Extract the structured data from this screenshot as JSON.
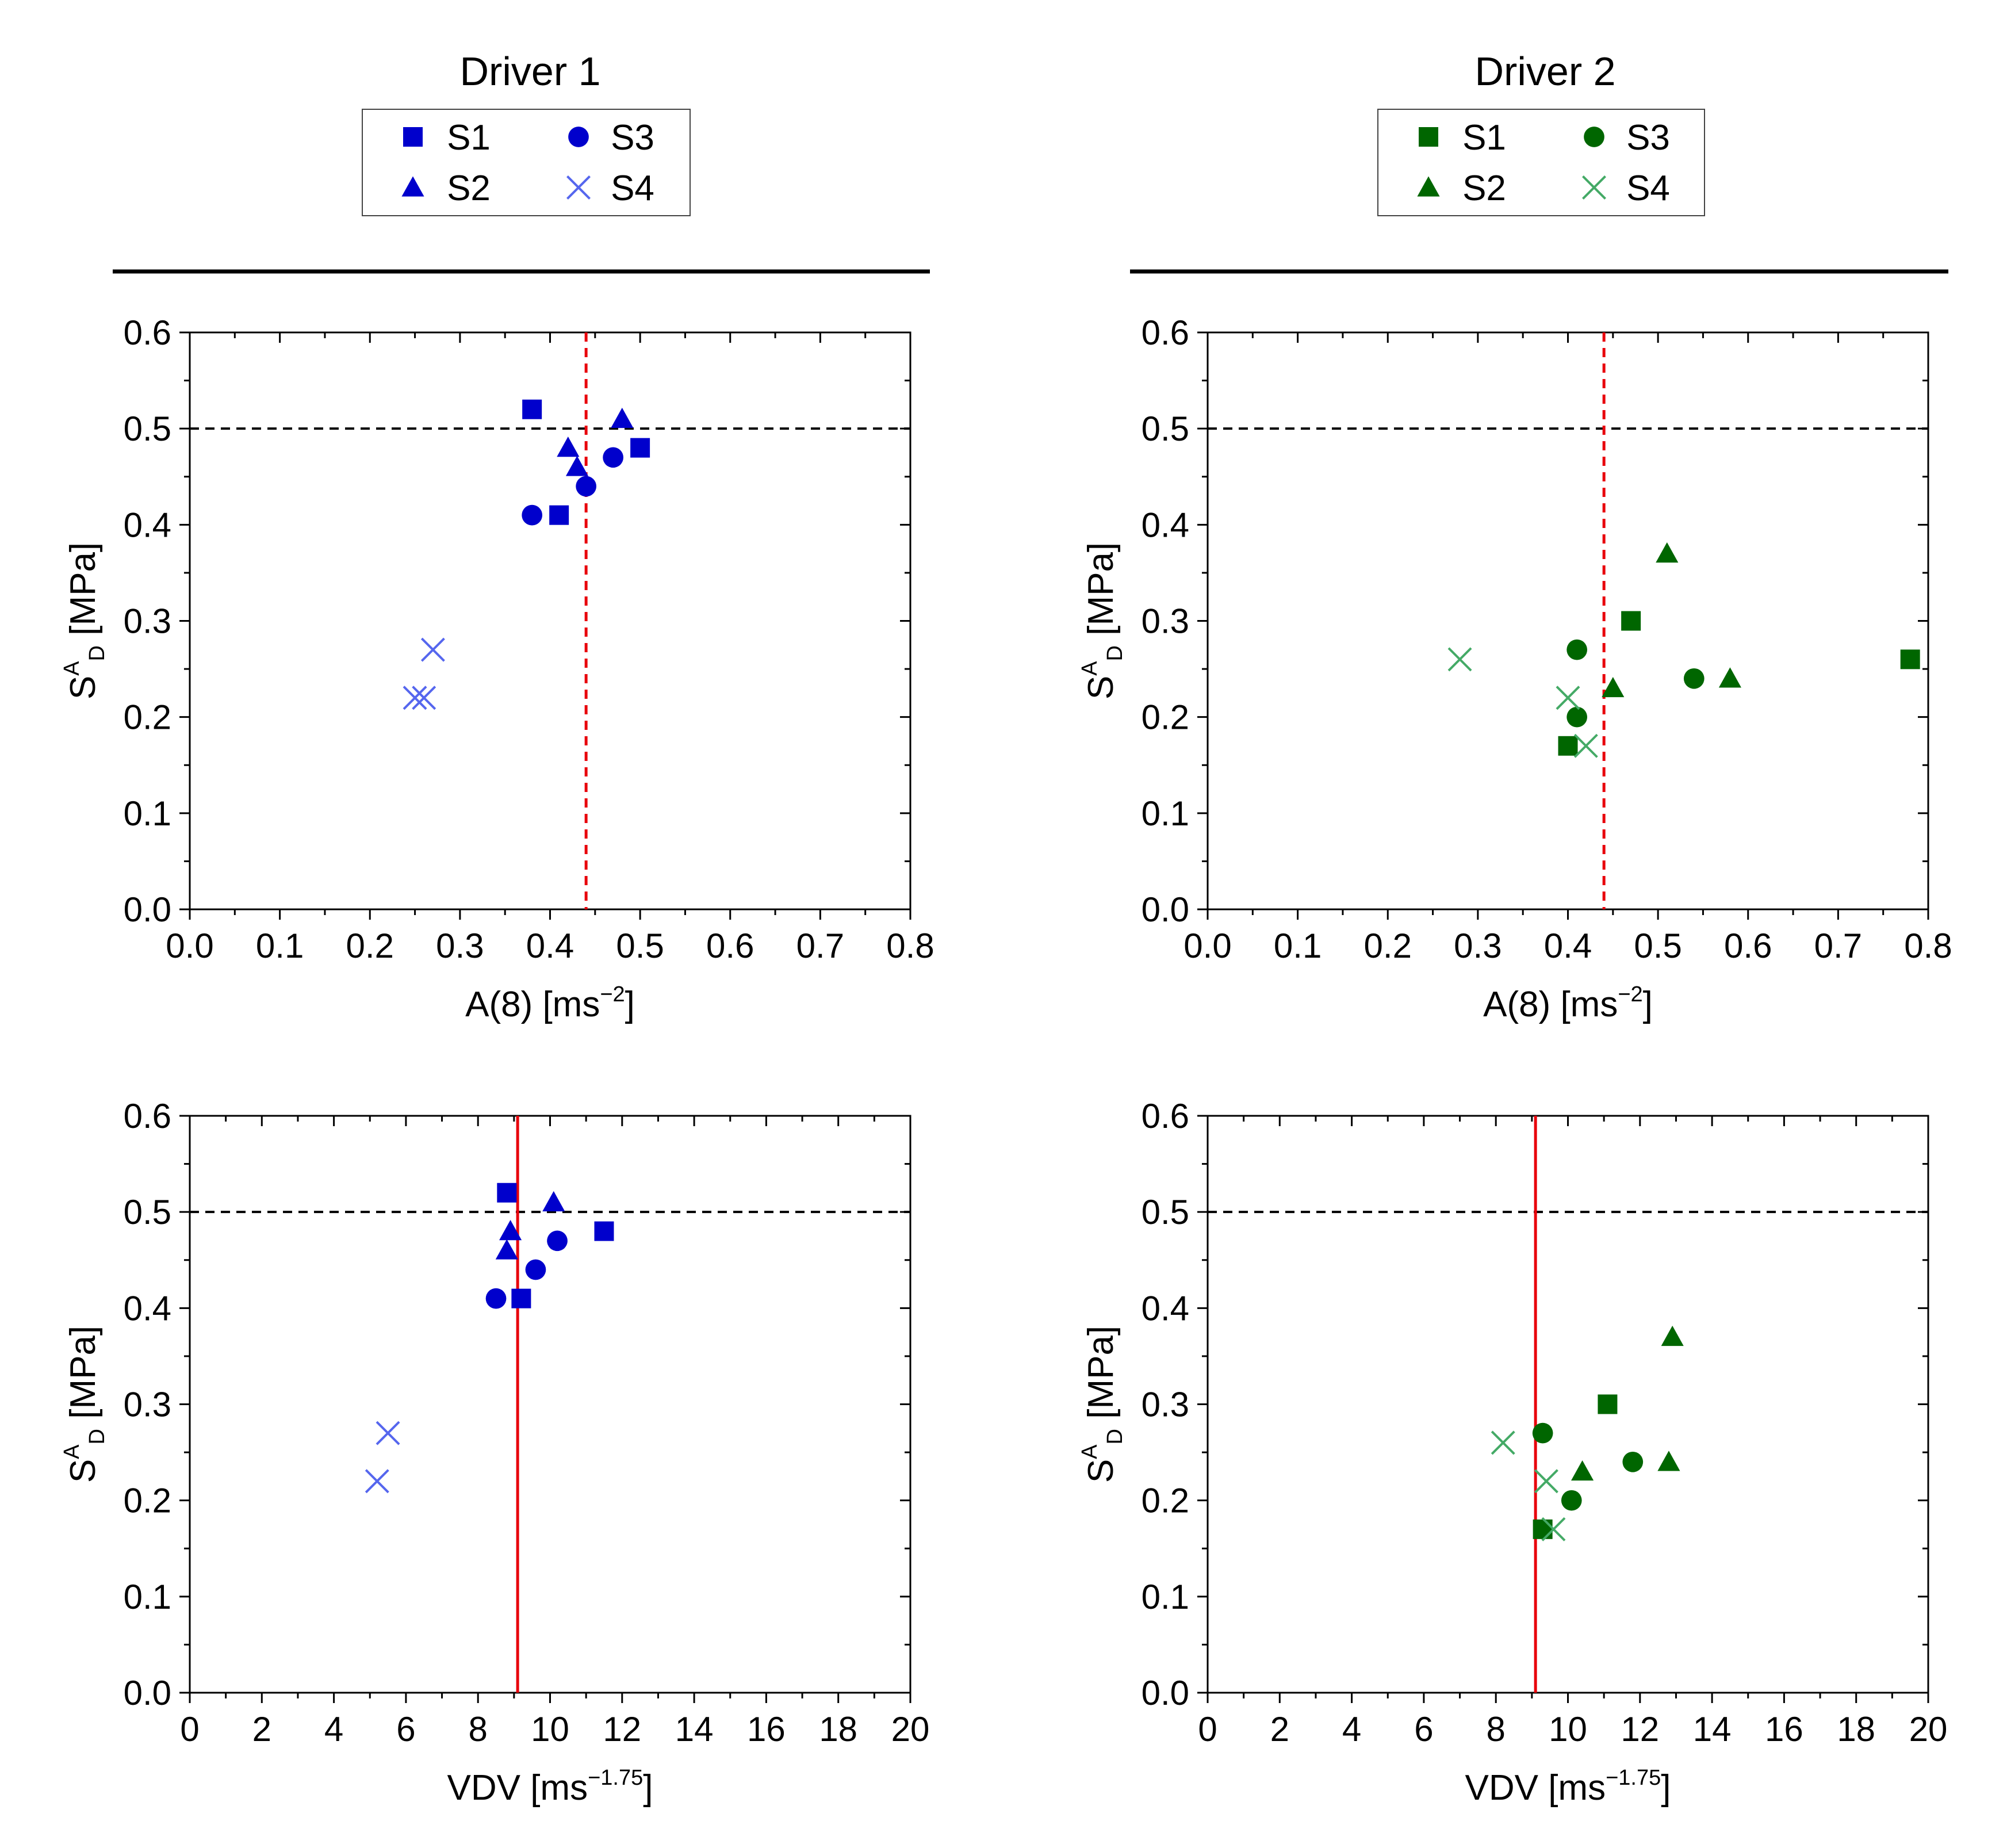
{
  "figure": {
    "columns": [
      {
        "title": "Driver 1",
        "color": "#0000CC",
        "light_color": "#5566EE",
        "legend": [
          "S1",
          "S2",
          "S3",
          "S4"
        ]
      },
      {
        "title": "Driver 2",
        "color": "#006600",
        "light_color": "#44AA66",
        "legend": [
          "S1",
          "S2",
          "S3",
          "S4"
        ]
      }
    ],
    "ylabel": {
      "main": "S",
      "sup": "A",
      "sub": "D",
      "unit": " [MPa]"
    },
    "xlabel_a8": {
      "main": "A(8) [ms",
      "sup": "−2",
      "tail": "]"
    },
    "xlabel_vdv": {
      "main": "VDV [ms",
      "sup": "−1.75",
      "tail": "]"
    }
  },
  "chart_data": [
    {
      "id": "driver1-a8",
      "type": "scatter",
      "title": "Driver 1",
      "xlabel": "A(8) [ms−2]",
      "ylabel": "SDA [MPa]",
      "xlim": [
        0,
        0.8
      ],
      "ylim": [
        0,
        0.6
      ],
      "xticks": [
        "0.0",
        "0.1",
        "0.2",
        "0.3",
        "0.4",
        "0.5",
        "0.6",
        "0.7",
        "0.8"
      ],
      "yticks": [
        "0.0",
        "0.1",
        "0.2",
        "0.3",
        "0.4",
        "0.5",
        "0.6"
      ],
      "hline": {
        "y": 0.5,
        "style": "dashed",
        "color": "#000000"
      },
      "vline": {
        "x": 0.44,
        "style": "dashed",
        "color": "#E8000B"
      },
      "series": [
        {
          "name": "S1",
          "marker": "square",
          "points": [
            [
              0.38,
              0.52
            ],
            [
              0.41,
              0.41
            ],
            [
              0.5,
              0.48
            ]
          ]
        },
        {
          "name": "S2",
          "marker": "triangle",
          "points": [
            [
              0.42,
              0.48
            ],
            [
              0.43,
              0.46
            ],
            [
              0.48,
              0.51
            ]
          ]
        },
        {
          "name": "S3",
          "marker": "circle",
          "points": [
            [
              0.38,
              0.41
            ],
            [
              0.44,
              0.44
            ],
            [
              0.47,
              0.47
            ]
          ]
        },
        {
          "name": "S4",
          "marker": "x",
          "points": [
            [
              0.25,
              0.22
            ],
            [
              0.26,
              0.22
            ],
            [
              0.27,
              0.27
            ]
          ]
        }
      ]
    },
    {
      "id": "driver2-a8",
      "type": "scatter",
      "title": "Driver 2",
      "xlabel": "A(8) [ms−2]",
      "ylabel": "SDA [MPa]",
      "xlim": [
        0,
        0.8
      ],
      "ylim": [
        0,
        0.6
      ],
      "xticks": [
        "0.0",
        "0.1",
        "0.2",
        "0.3",
        "0.4",
        "0.5",
        "0.6",
        "0.7",
        "0.8"
      ],
      "yticks": [
        "0.0",
        "0.1",
        "0.2",
        "0.3",
        "0.4",
        "0.5",
        "0.6"
      ],
      "hline": {
        "y": 0.5,
        "style": "dashed",
        "color": "#000000"
      },
      "vline": {
        "x": 0.44,
        "style": "dashed",
        "color": "#E8000B"
      },
      "series": [
        {
          "name": "S1",
          "marker": "square",
          "points": [
            [
              0.4,
              0.17
            ],
            [
              0.47,
              0.3
            ],
            [
              0.78,
              0.26
            ]
          ]
        },
        {
          "name": "S2",
          "marker": "triangle",
          "points": [
            [
              0.45,
              0.23
            ],
            [
              0.51,
              0.37
            ],
            [
              0.58,
              0.24
            ]
          ]
        },
        {
          "name": "S3",
          "marker": "circle",
          "points": [
            [
              0.41,
              0.27
            ],
            [
              0.41,
              0.2
            ],
            [
              0.54,
              0.24
            ]
          ]
        },
        {
          "name": "S4",
          "marker": "x",
          "points": [
            [
              0.28,
              0.26
            ],
            [
              0.4,
              0.22
            ],
            [
              0.42,
              0.17
            ]
          ]
        }
      ]
    },
    {
      "id": "driver1-vdv",
      "type": "scatter",
      "title": "Driver 1",
      "xlabel": "VDV [ms−1.75]",
      "ylabel": "SDA [MPa]",
      "xlim": [
        0,
        20
      ],
      "ylim": [
        0,
        0.6
      ],
      "xticks": [
        "0",
        "2",
        "4",
        "6",
        "8",
        "10",
        "12",
        "14",
        "16",
        "18",
        "20"
      ],
      "yticks": [
        "0.0",
        "0.1",
        "0.2",
        "0.3",
        "0.4",
        "0.5",
        "0.6"
      ],
      "hline": {
        "y": 0.5,
        "style": "dashed",
        "color": "#000000"
      },
      "vline": {
        "x": 9.1,
        "style": "solid",
        "color": "#E8000B"
      },
      "series": [
        {
          "name": "S1",
          "marker": "square",
          "points": [
            [
              8.8,
              0.52
            ],
            [
              9.2,
              0.41
            ],
            [
              11.5,
              0.48
            ]
          ]
        },
        {
          "name": "S2",
          "marker": "triangle",
          "points": [
            [
              8.9,
              0.48
            ],
            [
              8.8,
              0.46
            ],
            [
              10.1,
              0.51
            ]
          ]
        },
        {
          "name": "S3",
          "marker": "circle",
          "points": [
            [
              8.5,
              0.41
            ],
            [
              9.6,
              0.44
            ],
            [
              10.2,
              0.47
            ]
          ]
        },
        {
          "name": "S4",
          "marker": "x",
          "points": [
            [
              5.2,
              0.22
            ],
            [
              5.5,
              0.27
            ]
          ]
        }
      ]
    },
    {
      "id": "driver2-vdv",
      "type": "scatter",
      "title": "Driver 2",
      "xlabel": "VDV [ms−1.75]",
      "ylabel": "SDA [MPa]",
      "xlim": [
        0,
        20
      ],
      "ylim": [
        0,
        0.6
      ],
      "xticks": [
        "0",
        "2",
        "4",
        "6",
        "8",
        "10",
        "12",
        "14",
        "16",
        "18",
        "20"
      ],
      "yticks": [
        "0.0",
        "0.1",
        "0.2",
        "0.3",
        "0.4",
        "0.5",
        "0.6"
      ],
      "hline": {
        "y": 0.5,
        "style": "dashed",
        "color": "#000000"
      },
      "vline": {
        "x": 9.1,
        "style": "solid",
        "color": "#E8000B"
      },
      "series": [
        {
          "name": "S1",
          "marker": "square",
          "points": [
            [
              9.3,
              0.17
            ],
            [
              11.1,
              0.3
            ]
          ]
        },
        {
          "name": "S2",
          "marker": "triangle",
          "points": [
            [
              10.4,
              0.23
            ],
            [
              12.8,
              0.24
            ],
            [
              12.9,
              0.37
            ]
          ]
        },
        {
          "name": "S3",
          "marker": "circle",
          "points": [
            [
              9.3,
              0.27
            ],
            [
              10.1,
              0.2
            ],
            [
              11.8,
              0.24
            ]
          ]
        },
        {
          "name": "S4",
          "marker": "x",
          "points": [
            [
              8.2,
              0.26
            ],
            [
              9.4,
              0.22
            ],
            [
              9.6,
              0.17
            ]
          ]
        }
      ]
    }
  ]
}
